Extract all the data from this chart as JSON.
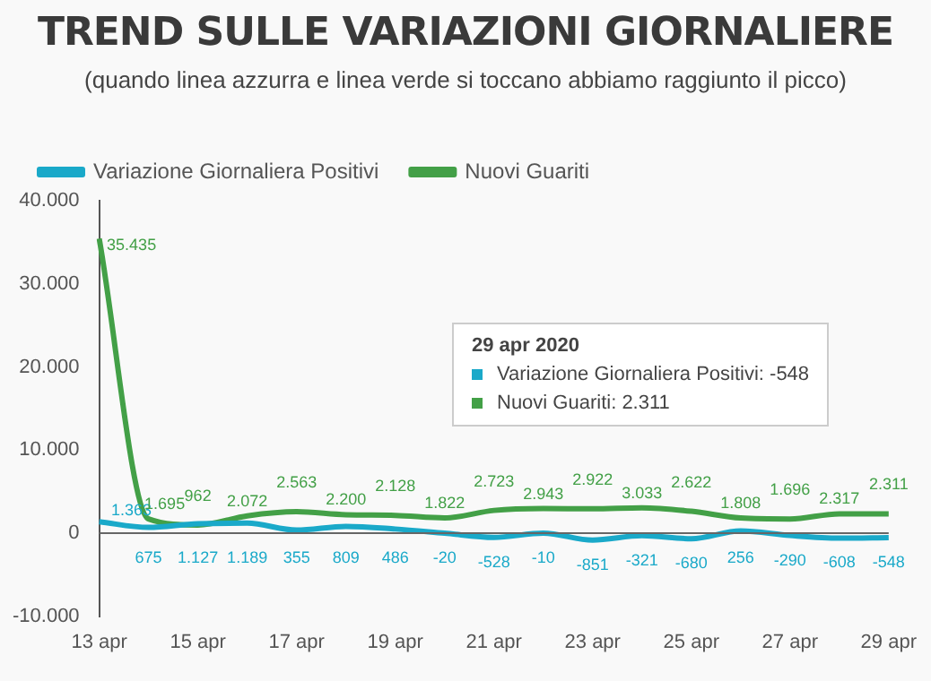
{
  "chart_data": {
    "type": "line",
    "title": "TREND SULLE VARIAZIONI GIORNALIERE",
    "subtitle": "(quando linea azzurra e linea verde si toccano abbiamo raggiunto il picco)",
    "categories": [
      "13 apr",
      null,
      "15 apr",
      null,
      "17 apr",
      null,
      "19 apr",
      null,
      "21 apr",
      null,
      "23 apr",
      null,
      "25 apr",
      null,
      "27 apr",
      null,
      "29 apr"
    ],
    "series": [
      {
        "name": "Variazione Giornaliera Positivi",
        "color": "#1aa9c9",
        "values": [
          1363,
          675,
          1127,
          1189,
          355,
          809,
          486,
          -20,
          -528,
          -10,
          -851,
          -321,
          -680,
          256,
          -290,
          -608,
          -548
        ],
        "value_labels": [
          "1.363",
          "675",
          "1.127",
          "1.189",
          "355",
          "809",
          "486",
          "-20",
          "-528",
          "-10",
          "-851",
          "-321",
          "-680",
          "256",
          "-290",
          "-608",
          "-548"
        ]
      },
      {
        "name": "Nuovi Guariti",
        "color": "#43a047",
        "values": [
          35435,
          1695,
          962,
          2072,
          2563,
          2200,
          2128,
          1822,
          2723,
          2943,
          2922,
          3033,
          2622,
          1808,
          1696,
          2317,
          2311
        ],
        "value_labels": [
          "35.435",
          "1.695",
          "962",
          "2.072",
          "2.563",
          "2.200",
          "2.128",
          "1.822",
          "2.723",
          "2.943",
          "2.922",
          "3.033",
          "2.622",
          "1.808",
          "1.696",
          "2.317",
          "2.311"
        ]
      }
    ],
    "ylim": [
      -10000,
      40000
    ],
    "yticks": [
      {
        "value": -10000,
        "label": "-10.000"
      },
      {
        "value": 0,
        "label": "0"
      },
      {
        "value": 10000,
        "label": "10.000"
      },
      {
        "value": 20000,
        "label": "20.000"
      },
      {
        "value": 30000,
        "label": "30.000"
      },
      {
        "value": 40000,
        "label": "40.000"
      }
    ],
    "ref_lines": [
      {
        "axis": "y",
        "value": 0,
        "color": "#666666"
      }
    ],
    "annotations": [
      "29 apr 2020\nVariazione Giornaliera Positivi: -548\nNuovi Guariti: 2.311"
    ],
    "legend": "top left",
    "grid": false,
    "marker": "none",
    "line_style": "solid"
  }
}
